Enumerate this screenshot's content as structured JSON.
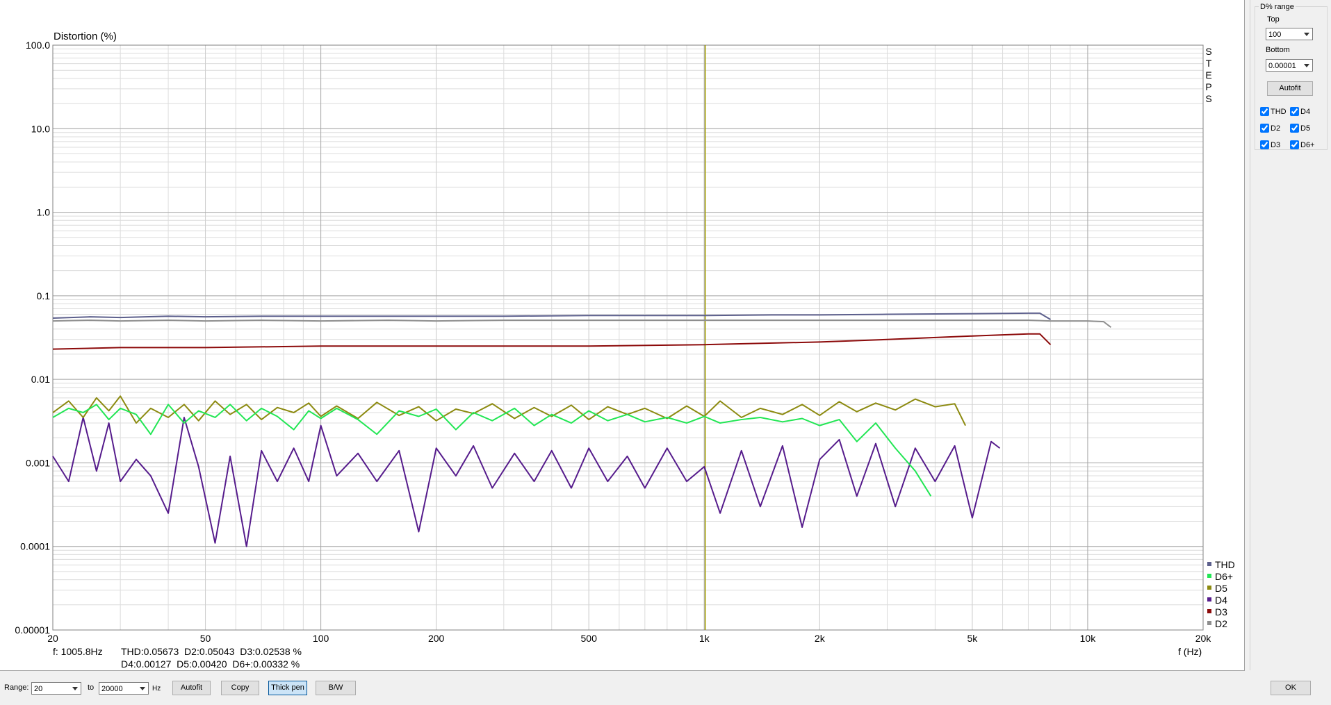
{
  "chart_data": {
    "type": "line",
    "title": "Distortion (%)",
    "x_label": "f (Hz)",
    "side_label": "STEPS",
    "side_label_color": "#a0282d",
    "xscale": "log",
    "yscale": "log",
    "xlim": [
      20,
      20000
    ],
    "ylim": [
      1e-05,
      100
    ],
    "xticks": [
      20,
      50,
      100,
      200,
      500,
      {
        "value": 1000,
        "label": "1k"
      },
      {
        "value": 2000,
        "label": "2k"
      },
      {
        "value": 5000,
        "label": "5k"
      },
      {
        "value": 10000,
        "label": "10k"
      },
      {
        "value": 20000,
        "label": "20k"
      }
    ],
    "yticks": [
      {
        "value": 100,
        "label": "100.0"
      },
      {
        "value": 10,
        "label": "10.0"
      },
      {
        "value": 1,
        "label": "1.0"
      },
      0.1,
      0.01,
      0.001,
      0.0001,
      1e-05
    ],
    "grid": true,
    "minor_grid": true,
    "legend": "bottom-right",
    "cursor": {
      "x": 1005.8,
      "color": "#a5a000"
    },
    "series": [
      {
        "name": "THD",
        "color": "#5c5f8c",
        "x": [
          20,
          25,
          30,
          40,
          50,
          70,
          100,
          150,
          200,
          300,
          500,
          700,
          1000,
          1500,
          2000,
          3000,
          5000,
          7000,
          7500,
          8000
        ],
        "values": [
          0.054,
          0.056,
          0.055,
          0.057,
          0.056,
          0.057,
          0.057,
          0.057,
          0.057,
          0.057,
          0.058,
          0.058,
          0.058,
          0.059,
          0.059,
          0.06,
          0.061,
          0.062,
          0.062,
          0.052
        ]
      },
      {
        "name": "D6+",
        "color": "#22e654",
        "x": [
          20,
          22,
          24,
          26,
          28,
          30,
          33,
          36,
          40,
          44,
          48,
          53,
          58,
          64,
          70,
          77,
          85,
          93,
          100,
          110,
          125,
          140,
          160,
          180,
          200,
          225,
          250,
          280,
          320,
          360,
          400,
          450,
          500,
          560,
          630,
          700,
          800,
          900,
          1000,
          1100,
          1250,
          1400,
          1600,
          1800,
          2000,
          2250,
          2500,
          2800,
          3150,
          3550,
          3900
        ],
        "values": [
          0.0035,
          0.0045,
          0.004,
          0.005,
          0.0033,
          0.0045,
          0.0038,
          0.0022,
          0.005,
          0.003,
          0.0042,
          0.0035,
          0.005,
          0.0032,
          0.0045,
          0.0036,
          0.0025,
          0.0042,
          0.0034,
          0.0045,
          0.0033,
          0.0022,
          0.0042,
          0.0036,
          0.0044,
          0.0025,
          0.004,
          0.0032,
          0.0045,
          0.0028,
          0.0038,
          0.003,
          0.0042,
          0.0032,
          0.0038,
          0.0031,
          0.0035,
          0.003,
          0.0036,
          0.003,
          0.0033,
          0.0035,
          0.0031,
          0.0034,
          0.0028,
          0.0033,
          0.0018,
          0.003,
          0.0015,
          0.0008,
          0.0004
        ]
      },
      {
        "name": "D5",
        "color": "#8c8a10",
        "x": [
          20,
          22,
          24,
          26,
          28,
          30,
          33,
          36,
          40,
          44,
          48,
          53,
          58,
          64,
          70,
          77,
          85,
          93,
          100,
          110,
          125,
          140,
          160,
          180,
          200,
          225,
          250,
          280,
          320,
          360,
          400,
          450,
          500,
          560,
          630,
          700,
          800,
          900,
          1000,
          1100,
          1250,
          1400,
          1600,
          1800,
          2000,
          2250,
          2500,
          2800,
          3150,
          3550,
          4000,
          4500,
          4800
        ],
        "values": [
          0.004,
          0.0055,
          0.0035,
          0.006,
          0.0042,
          0.0063,
          0.003,
          0.0045,
          0.0035,
          0.005,
          0.0032,
          0.0055,
          0.0038,
          0.005,
          0.0033,
          0.0046,
          0.004,
          0.0052,
          0.0036,
          0.0048,
          0.0034,
          0.0053,
          0.0037,
          0.0047,
          0.0032,
          0.0044,
          0.0039,
          0.0051,
          0.0034,
          0.0046,
          0.0036,
          0.0049,
          0.0033,
          0.0047,
          0.0038,
          0.0045,
          0.0034,
          0.0048,
          0.0036,
          0.0055,
          0.0035,
          0.0045,
          0.0038,
          0.005,
          0.0037,
          0.0054,
          0.0041,
          0.0052,
          0.0043,
          0.0058,
          0.0047,
          0.0051,
          0.0028
        ]
      },
      {
        "name": "D4",
        "color": "#561c8c",
        "x": [
          20,
          22,
          24,
          26,
          28,
          30,
          33,
          36,
          40,
          44,
          48,
          53,
          58,
          64,
          70,
          77,
          85,
          93,
          100,
          110,
          125,
          140,
          160,
          180,
          200,
          225,
          250,
          280,
          320,
          360,
          400,
          450,
          500,
          560,
          630,
          700,
          800,
          900,
          1000,
          1100,
          1250,
          1400,
          1600,
          1800,
          2000,
          2250,
          2500,
          2800,
          3150,
          3550,
          4000,
          4500,
          5000,
          5600,
          5900
        ],
        "values": [
          0.0012,
          0.0006,
          0.0035,
          0.0008,
          0.003,
          0.0006,
          0.0011,
          0.0007,
          0.00025,
          0.0035,
          0.0009,
          0.00011,
          0.0012,
          0.0001,
          0.0014,
          0.0006,
          0.0015,
          0.0006,
          0.0028,
          0.0007,
          0.0013,
          0.0006,
          0.0014,
          0.00015,
          0.0015,
          0.0007,
          0.0016,
          0.0005,
          0.0013,
          0.0006,
          0.0014,
          0.0005,
          0.0015,
          0.0006,
          0.0012,
          0.0005,
          0.0015,
          0.0006,
          0.0009,
          0.00025,
          0.0014,
          0.0003,
          0.0016,
          0.00017,
          0.0011,
          0.0019,
          0.0004,
          0.0017,
          0.0003,
          0.0015,
          0.0006,
          0.0016,
          0.00022,
          0.0018,
          0.0015
        ]
      },
      {
        "name": "D3",
        "color": "#8c0a0a",
        "x": [
          20,
          30,
          50,
          100,
          200,
          500,
          1000,
          2000,
          3000,
          5000,
          7000,
          7500,
          8000
        ],
        "values": [
          0.023,
          0.024,
          0.024,
          0.025,
          0.025,
          0.025,
          0.026,
          0.028,
          0.03,
          0.033,
          0.035,
          0.035,
          0.026
        ]
      },
      {
        "name": "D2",
        "color": "#8e8e8e",
        "x": [
          20,
          25,
          30,
          40,
          50,
          70,
          100,
          150,
          200,
          300,
          500,
          700,
          1000,
          1500,
          2000,
          3000,
          5000,
          7000,
          8000,
          9000,
          10000,
          11000,
          11500
        ],
        "values": [
          0.05,
          0.051,
          0.05,
          0.051,
          0.05,
          0.051,
          0.05,
          0.051,
          0.05,
          0.051,
          0.051,
          0.051,
          0.051,
          0.051,
          0.051,
          0.051,
          0.051,
          0.051,
          0.05,
          0.05,
          0.05,
          0.049,
          0.042
        ]
      }
    ]
  },
  "readout": {
    "frequency": "f: 1005.8Hz",
    "line1": "THD:0.05673  D2:0.05043  D3:0.02538 %",
    "line2": "D4:0.00127  D5:0.00420  D6+:0.00332 %"
  },
  "range_panel": {
    "title": "D% range",
    "top_label": "Top",
    "top_value": "100",
    "bottom_label": "Bottom",
    "bottom_value": "0.00001",
    "autofit": "Autofit",
    "checkboxes": [
      {
        "label": "THD",
        "checked": true
      },
      {
        "label": "D4",
        "checked": true
      },
      {
        "label": "D2",
        "checked": true
      },
      {
        "label": "D5",
        "checked": true
      },
      {
        "label": "D3",
        "checked": true
      },
      {
        "label": "D6+",
        "checked": true
      }
    ]
  },
  "toolbar": {
    "range_label": "Range:",
    "from": "20",
    "to_label": "to",
    "to": "20000",
    "unit": "Hz",
    "buttons": [
      {
        "label": "Autofit",
        "pressed": false
      },
      {
        "label": "Copy",
        "pressed": false
      },
      {
        "label": "Thick pen",
        "pressed": true
      },
      {
        "label": "B/W",
        "pressed": false
      }
    ],
    "ok": "OK"
  }
}
